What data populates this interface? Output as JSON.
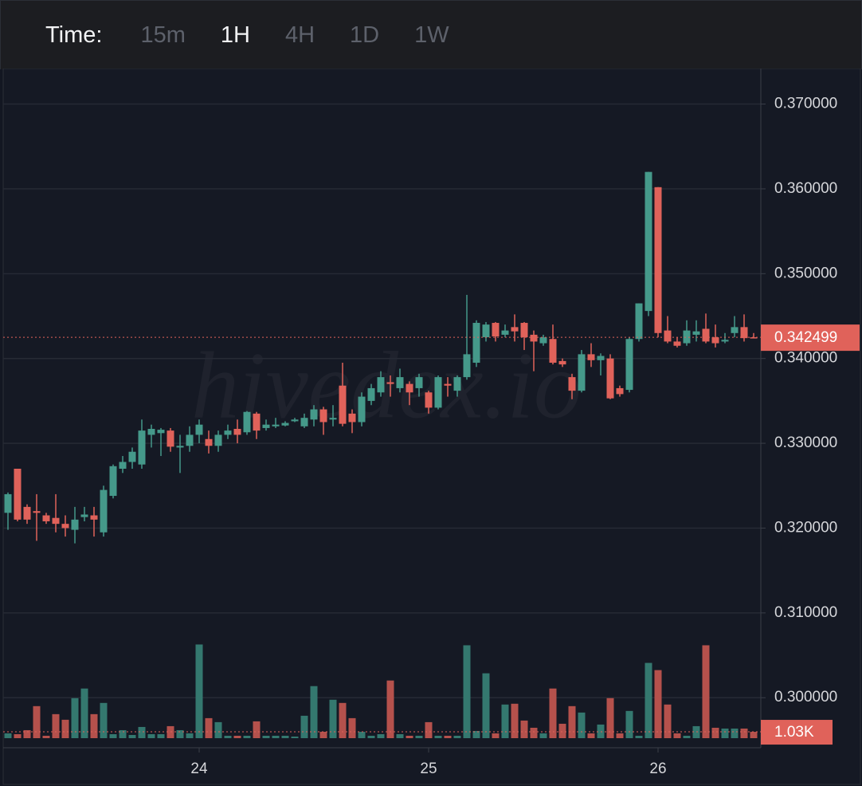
{
  "toolbar": {
    "label": "Time:",
    "options": [
      "15m",
      "1H",
      "4H",
      "1D",
      "1W"
    ],
    "active": "1H"
  },
  "chart_data": {
    "type": "candlestick",
    "watermark": "hivedex.io",
    "categories": [
      null,
      null,
      null,
      null,
      null,
      null,
      null,
      null,
      null,
      null,
      null,
      null,
      null,
      null,
      null,
      null,
      null,
      null,
      null,
      null,
      "24",
      null,
      null,
      null,
      null,
      null,
      null,
      null,
      null,
      null,
      null,
      null,
      null,
      null,
      null,
      null,
      null,
      null,
      null,
      null,
      null,
      null,
      null,
      null,
      "25",
      null,
      null,
      null,
      null,
      null,
      null,
      null,
      null,
      null,
      null,
      null,
      null,
      null,
      null,
      null,
      null,
      null,
      null,
      null,
      null,
      null,
      null,
      null,
      "26",
      null,
      null,
      null,
      null,
      null,
      null,
      null,
      null,
      null,
      null
    ],
    "open": [
      0.3218,
      0.327,
      0.3225,
      0.322,
      0.3215,
      0.3212,
      0.3205,
      0.3198,
      0.3213,
      0.3215,
      0.3195,
      0.3238,
      0.327,
      0.3278,
      0.3275,
      0.331,
      0.3312,
      0.3315,
      0.3295,
      0.3297,
      0.331,
      0.3305,
      0.3297,
      0.331,
      0.3317,
      0.3313,
      0.3335,
      0.3318,
      0.332,
      0.3321,
      0.3326,
      0.332,
      0.3328,
      0.334,
      0.3328,
      0.3368,
      0.3335,
      0.3325,
      0.335,
      0.336,
      0.3372,
      0.3365,
      0.337,
      0.3365,
      0.336,
      0.3342,
      0.337,
      0.3362,
      0.3378,
      0.3395,
      0.3425,
      0.3442,
      0.3428,
      0.3437,
      0.3442,
      0.3428,
      0.3418,
      0.3423,
      0.3397,
      0.3378,
      0.3362,
      0.3405,
      0.3398,
      0.34,
      0.3365,
      0.3363,
      0.3423,
      0.3456,
      0.3602,
      0.3433,
      0.342,
      0.3418,
      0.3428,
      0.3435,
      0.3425,
      0.342,
      0.343,
      0.3437,
      0.3425
    ],
    "high": [
      0.3242,
      0.327,
      0.3228,
      0.324,
      0.3218,
      0.324,
      0.3215,
      0.3225,
      0.3225,
      0.3225,
      0.325,
      0.3275,
      0.3285,
      0.3295,
      0.3328,
      0.3322,
      0.3318,
      0.3318,
      0.331,
      0.332,
      0.3328,
      0.3315,
      0.3315,
      0.3322,
      0.3328,
      0.3338,
      0.3337,
      0.3328,
      0.333,
      0.3326,
      0.333,
      0.3335,
      0.3345,
      0.3343,
      0.3345,
      0.3395,
      0.334,
      0.336,
      0.337,
      0.3385,
      0.338,
      0.3388,
      0.3373,
      0.3382,
      0.3362,
      0.338,
      0.3378,
      0.338,
      0.3475,
      0.3445,
      0.3443,
      0.3443,
      0.344,
      0.3452,
      0.3443,
      0.3433,
      0.3428,
      0.344,
      0.34,
      0.3382,
      0.341,
      0.3418,
      0.3406,
      0.3405,
      0.3368,
      0.3425,
      0.3465,
      0.362,
      0.3602,
      0.345,
      0.3425,
      0.3445,
      0.3445,
      0.3453,
      0.344,
      0.343,
      0.345,
      0.3452,
      0.343
    ],
    "low": [
      0.3198,
      0.3208,
      0.3205,
      0.3185,
      0.3205,
      0.3195,
      0.319,
      0.3182,
      0.3208,
      0.319,
      0.319,
      0.3235,
      0.3265,
      0.327,
      0.327,
      0.3295,
      0.3285,
      0.329,
      0.3265,
      0.329,
      0.33,
      0.3288,
      0.329,
      0.3305,
      0.33,
      0.331,
      0.3305,
      0.3315,
      0.3318,
      0.332,
      0.3325,
      0.3318,
      0.332,
      0.331,
      0.332,
      0.332,
      0.3312,
      0.332,
      0.3345,
      0.3355,
      0.3355,
      0.336,
      0.3345,
      0.3355,
      0.3335,
      0.334,
      0.3355,
      0.3355,
      0.3375,
      0.339,
      0.342,
      0.342,
      0.3425,
      0.342,
      0.341,
      0.3385,
      0.3415,
      0.3393,
      0.339,
      0.3352,
      0.336,
      0.339,
      0.338,
      0.3352,
      0.3355,
      0.336,
      0.342,
      0.345,
      0.3425,
      0.3418,
      0.3413,
      0.3415,
      0.342,
      0.3418,
      0.3413,
      0.3418,
      0.3425,
      0.342,
      0.3424
    ],
    "close": [
      0.324,
      0.321,
      0.321,
      0.3218,
      0.3208,
      0.3205,
      0.32,
      0.321,
      0.3216,
      0.321,
      0.3245,
      0.3273,
      0.3278,
      0.329,
      0.3315,
      0.3317,
      0.3316,
      0.3296,
      0.3297,
      0.331,
      0.3322,
      0.3297,
      0.331,
      0.3315,
      0.331,
      0.3337,
      0.3315,
      0.3322,
      0.3322,
      0.3324,
      0.3328,
      0.333,
      0.334,
      0.3325,
      0.333,
      0.3323,
      0.3325,
      0.3355,
      0.3365,
      0.3378,
      0.337,
      0.3378,
      0.336,
      0.3378,
      0.3342,
      0.3378,
      0.3368,
      0.3378,
      0.3405,
      0.3442,
      0.344,
      0.3426,
      0.3433,
      0.3432,
      0.3425,
      0.342,
      0.3425,
      0.3395,
      0.3393,
      0.3362,
      0.3405,
      0.3398,
      0.3403,
      0.3353,
      0.3358,
      0.3423,
      0.3465,
      0.362,
      0.343,
      0.342,
      0.3415,
      0.3433,
      0.3432,
      0.342,
      0.3418,
      0.3422,
      0.3437,
      0.3424,
      0.342499
    ],
    "volume": [
      780,
      650,
      1300,
      5200,
      390,
      3900,
      2990,
      6500,
      8060,
      3900,
      5720,
      650,
      1300,
      520,
      1820,
      650,
      650,
      1950,
      1300,
      780,
      15210,
      3250,
      2600,
      390,
      390,
      390,
      2730,
      390,
      390,
      390,
      260,
      3640,
      8450,
      1040,
      6240,
      5720,
      3250,
      1040,
      390,
      650,
      9360,
      650,
      390,
      390,
      2600,
      390,
      390,
      390,
      15080,
      1170,
      10530,
      780,
      5460,
      5590,
      2860,
      1690,
      780,
      8060,
      2340,
      5200,
      4160,
      780,
      2210,
      6500,
      780,
      4420,
      390,
      12220,
      11050,
      5460,
      780,
      390,
      1950,
      15080,
      1690,
      1560,
      1560,
      1560,
      1030
    ],
    "colors": {
      "up": "#45998a",
      "down": "#e0625a",
      "up_volume": "#34786f",
      "down_volume": "#b5514c"
    },
    "ylim": [
      0.2941,
      0.374
    ],
    "yticks": [
      {
        "value": 0.3,
        "label": "0.300000"
      },
      {
        "value": 0.31,
        "label": "0.310000"
      },
      {
        "value": 0.32,
        "label": "0.320000"
      },
      {
        "value": 0.33,
        "label": "0.330000"
      },
      {
        "value": 0.34,
        "label": "0.340000"
      },
      {
        "value": 0.35,
        "label": "0.350000"
      },
      {
        "value": 0.36,
        "label": "0.360000"
      },
      {
        "value": 0.37,
        "label": "0.370000"
      }
    ],
    "y2lim": [
      0,
      110000
    ],
    "grid": true,
    "last_price": 0.342499,
    "last_volume": {
      "value": 1030,
      "label": "1.03K"
    }
  }
}
